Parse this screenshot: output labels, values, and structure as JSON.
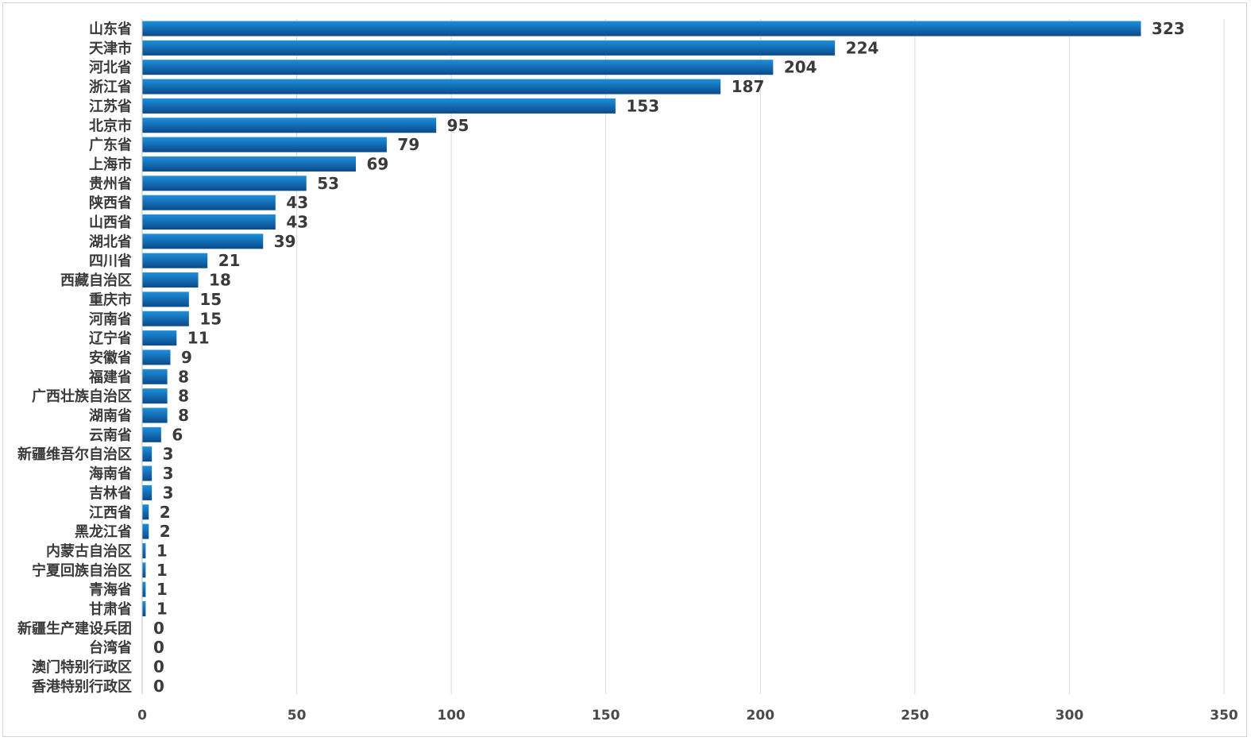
{
  "chart_data": {
    "type": "bar",
    "orientation": "horizontal",
    "categories": [
      "山东省",
      "天津市",
      "河北省",
      "浙江省",
      "江苏省",
      "北京市",
      "广东省",
      "上海市",
      "贵州省",
      "陕西省",
      "山西省",
      "湖北省",
      "四川省",
      "西藏自治区",
      "重庆市",
      "河南省",
      "辽宁省",
      "安徽省",
      "福建省",
      "广西壮族自治区",
      "湖南省",
      "云南省",
      "新疆维吾尔自治区",
      "海南省",
      "吉林省",
      "江西省",
      "黑龙江省",
      "内蒙古自治区",
      "宁夏回族自治区",
      "青海省",
      "甘肃省",
      "新疆生产建设兵团",
      "台湾省",
      "澳门特别行政区",
      "香港特别行政区"
    ],
    "values": [
      323,
      224,
      204,
      187,
      153,
      95,
      79,
      69,
      53,
      43,
      43,
      39,
      21,
      18,
      15,
      15,
      11,
      9,
      8,
      8,
      8,
      6,
      3,
      3,
      3,
      2,
      2,
      1,
      1,
      1,
      1,
      0,
      0,
      0,
      0
    ],
    "xlim": [
      0,
      350
    ],
    "xticks": [
      0,
      50,
      100,
      150,
      200,
      250,
      300,
      350
    ],
    "grid": "vertical",
    "legend": "none",
    "bar_color_light": "#1e8fdc",
    "bar_color_dark": "#0a4a8a"
  }
}
